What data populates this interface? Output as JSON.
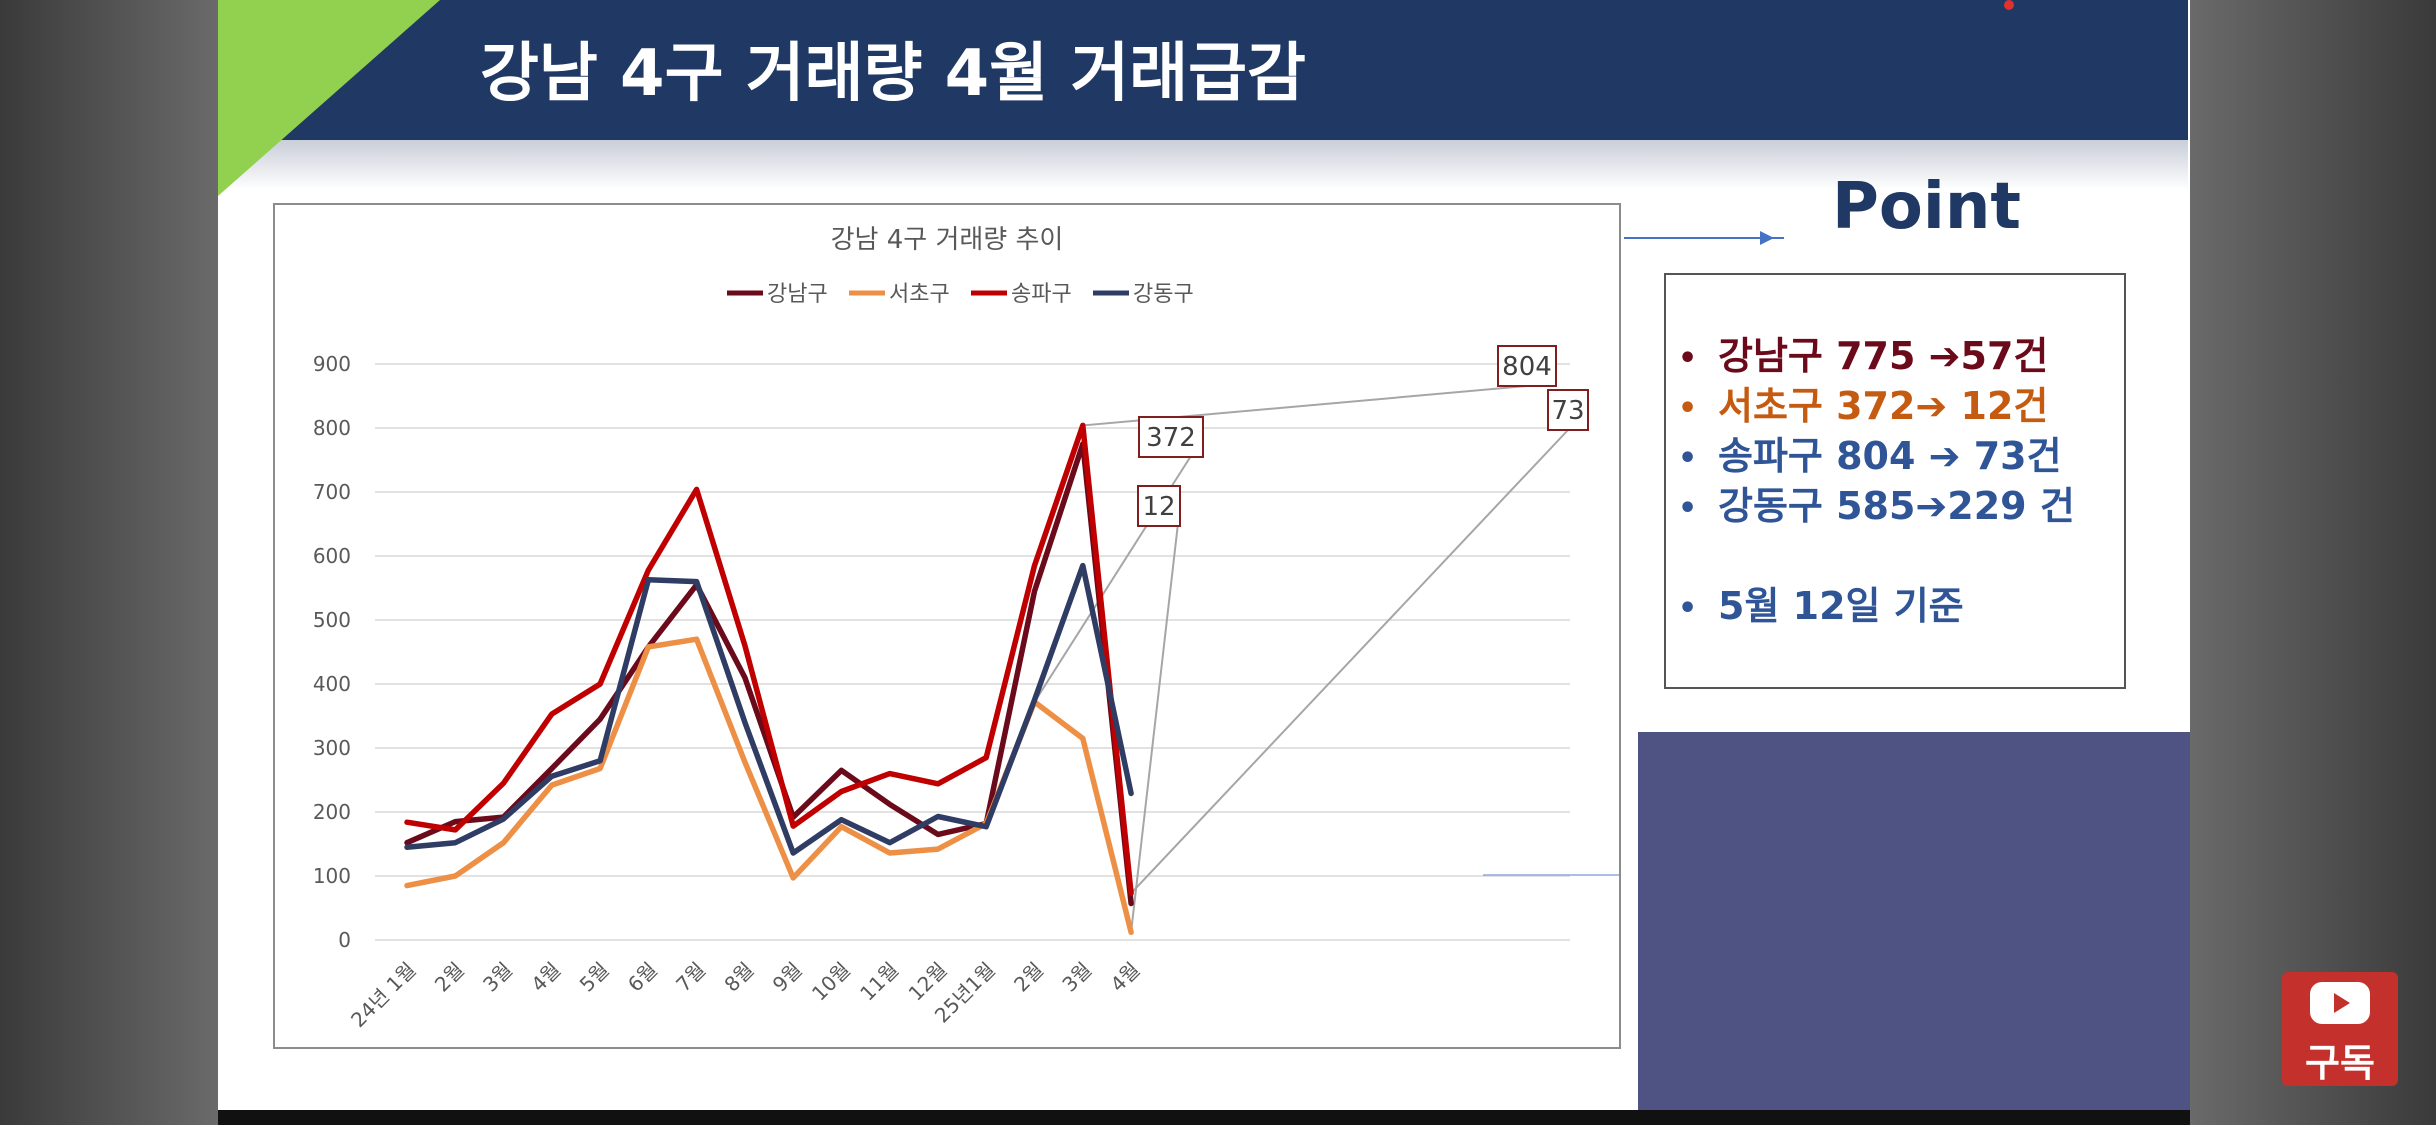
{
  "slide": {
    "title": "강남 4구 거래량 4월 거래급감"
  },
  "chart_data": {
    "type": "line",
    "title": "강남 4구 거래량 추이",
    "categories": [
      "24년 1월",
      "2월",
      "3월",
      "4월",
      "5월",
      "6월",
      "7월",
      "8월",
      "9월",
      "10월",
      "11월",
      "12월",
      "25년1월",
      "2월",
      "3월",
      "4월"
    ],
    "series": [
      {
        "name": "강남구",
        "color": "#6b0a1a",
        "values": [
          152,
          185,
          192,
          268,
          345,
          458,
          555,
          410,
          192,
          265,
          212,
          165,
          182,
          545,
          775,
          57
        ]
      },
      {
        "name": "서초구",
        "color": "#ed8f45",
        "values": [
          85,
          100,
          152,
          242,
          268,
          458,
          470,
          278,
          97,
          177,
          136,
          142,
          182,
          372,
          315,
          12
        ]
      },
      {
        "name": "송파구",
        "color": "#c00000",
        "values": [
          184,
          172,
          245,
          353,
          400,
          578,
          704,
          460,
          178,
          232,
          260,
          244,
          285,
          585,
          804,
          73
        ]
      },
      {
        "name": "강동구",
        "color": "#2f3c63",
        "values": [
          145,
          152,
          189,
          256,
          280,
          563,
          560,
          340,
          136,
          188,
          152,
          193,
          177,
          375,
          585,
          229
        ]
      }
    ],
    "yticks": [
      0,
      100,
      200,
      300,
      400,
      500,
      600,
      700,
      800,
      900
    ],
    "ylim": [
      0,
      900
    ],
    "grid": true,
    "legend_placement": "top-center",
    "callouts": [
      {
        "label": "804",
        "series": 2,
        "point": 14
      },
      {
        "label": "73",
        "series": 2,
        "point": 15
      },
      {
        "label": "372",
        "series": 1,
        "point": 13
      },
      {
        "label": "12",
        "series": 1,
        "point": 15
      }
    ]
  },
  "point_panel": {
    "title": "Point",
    "bullet": "•",
    "items": [
      {
        "text": "강남구  775 ➔57건",
        "color": "#6b0a1a"
      },
      {
        "text": "서초구  372➔ 12건",
        "color": "#c55a11"
      },
      {
        "text": "송파구 804 ➔ 73건",
        "color": "#2f5597"
      },
      {
        "text": "강동구 585➔229 건",
        "color": "#2f5597"
      },
      {
        "text": "5월 12일 기준",
        "color": "#2f5597"
      }
    ]
  },
  "youtube": {
    "label": "구독"
  }
}
